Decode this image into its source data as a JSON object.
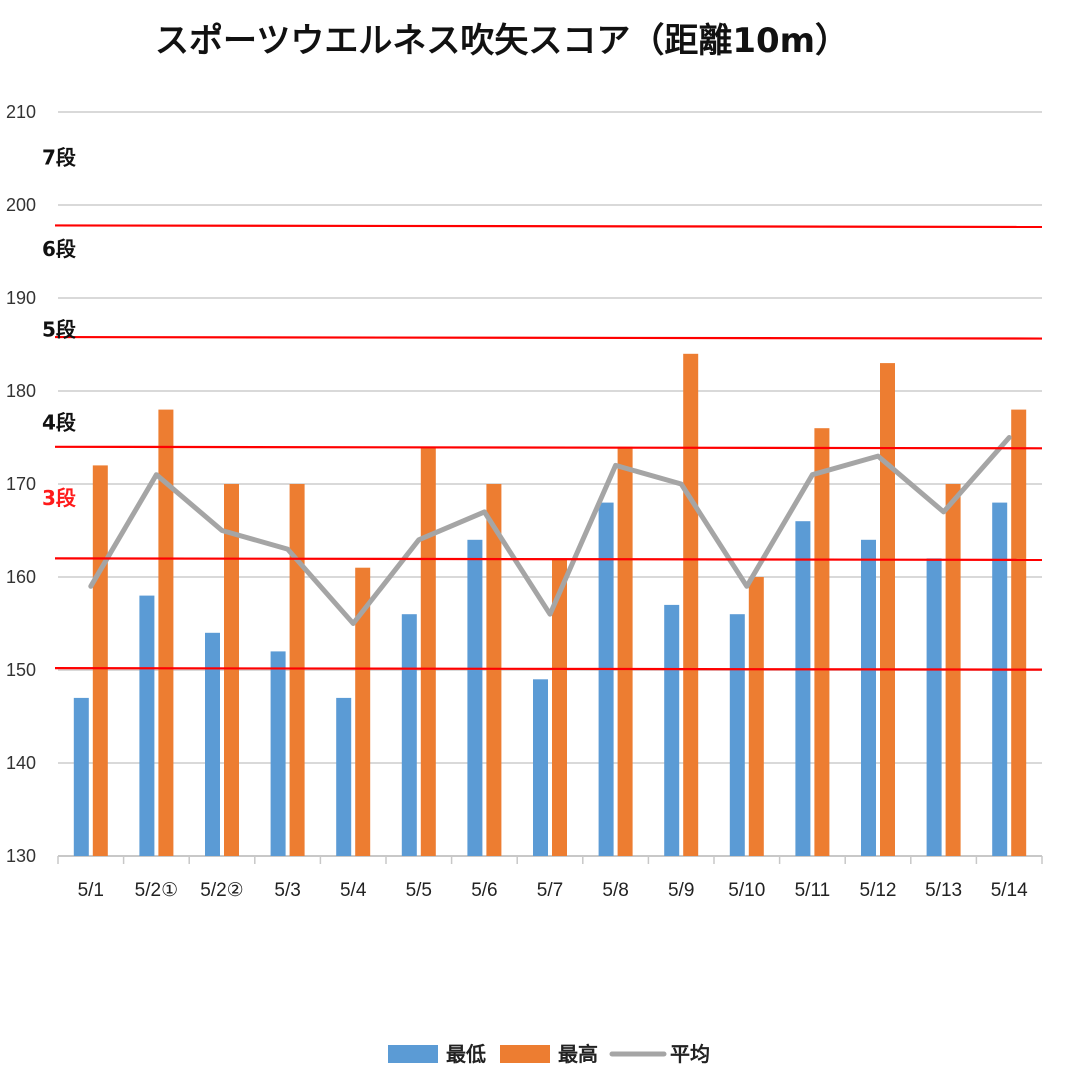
{
  "chart_data": {
    "type": "bar",
    "title": "スポーツウエルネス吹矢スコア（距離10m）",
    "categories": [
      "5/1",
      "5/2①",
      "5/2②",
      "5/3",
      "5/4",
      "5/5",
      "5/6",
      "5/7",
      "5/8",
      "5/9",
      "5/10",
      "5/11",
      "5/12",
      "5/13",
      "5/14"
    ],
    "series": [
      {
        "name": "最低",
        "type": "bar",
        "color": "#5b9bd5",
        "values": [
          147,
          158,
          154,
          152,
          147,
          156,
          164,
          149,
          168,
          157,
          156,
          166,
          164,
          162,
          168
        ]
      },
      {
        "name": "最高",
        "type": "bar",
        "color": "#ed7d31",
        "values": [
          172,
          178,
          170,
          170,
          161,
          174,
          170,
          162,
          174,
          184,
          160,
          176,
          183,
          170,
          178
        ]
      },
      {
        "name": "平均",
        "type": "line",
        "color": "#a5a5a5",
        "values": [
          159,
          171,
          165,
          163,
          155,
          164,
          167,
          156,
          172,
          170,
          159,
          171,
          173,
          167,
          175
        ]
      }
    ],
    "ylim": [
      130,
      210
    ],
    "yticks": [
      130,
      140,
      150,
      160,
      170,
      180,
      190,
      200,
      210
    ],
    "grid": true,
    "legend_position": "bottom",
    "reference_lines": {
      "color": "#ff0000",
      "values": [
        150.2,
        162,
        174,
        185.8,
        197.8
      ]
    },
    "rank_labels": [
      {
        "text": "7段",
        "value": 205.2,
        "color": "#111111"
      },
      {
        "text": "6段",
        "value": 195.4,
        "color": "#111111"
      },
      {
        "text": "5段",
        "value": 186.7,
        "color": "#111111"
      },
      {
        "text": "4段",
        "value": 176.7,
        "color": "#111111"
      },
      {
        "text": "3段",
        "value": 168.6,
        "color": "#ff1a1a"
      }
    ]
  }
}
